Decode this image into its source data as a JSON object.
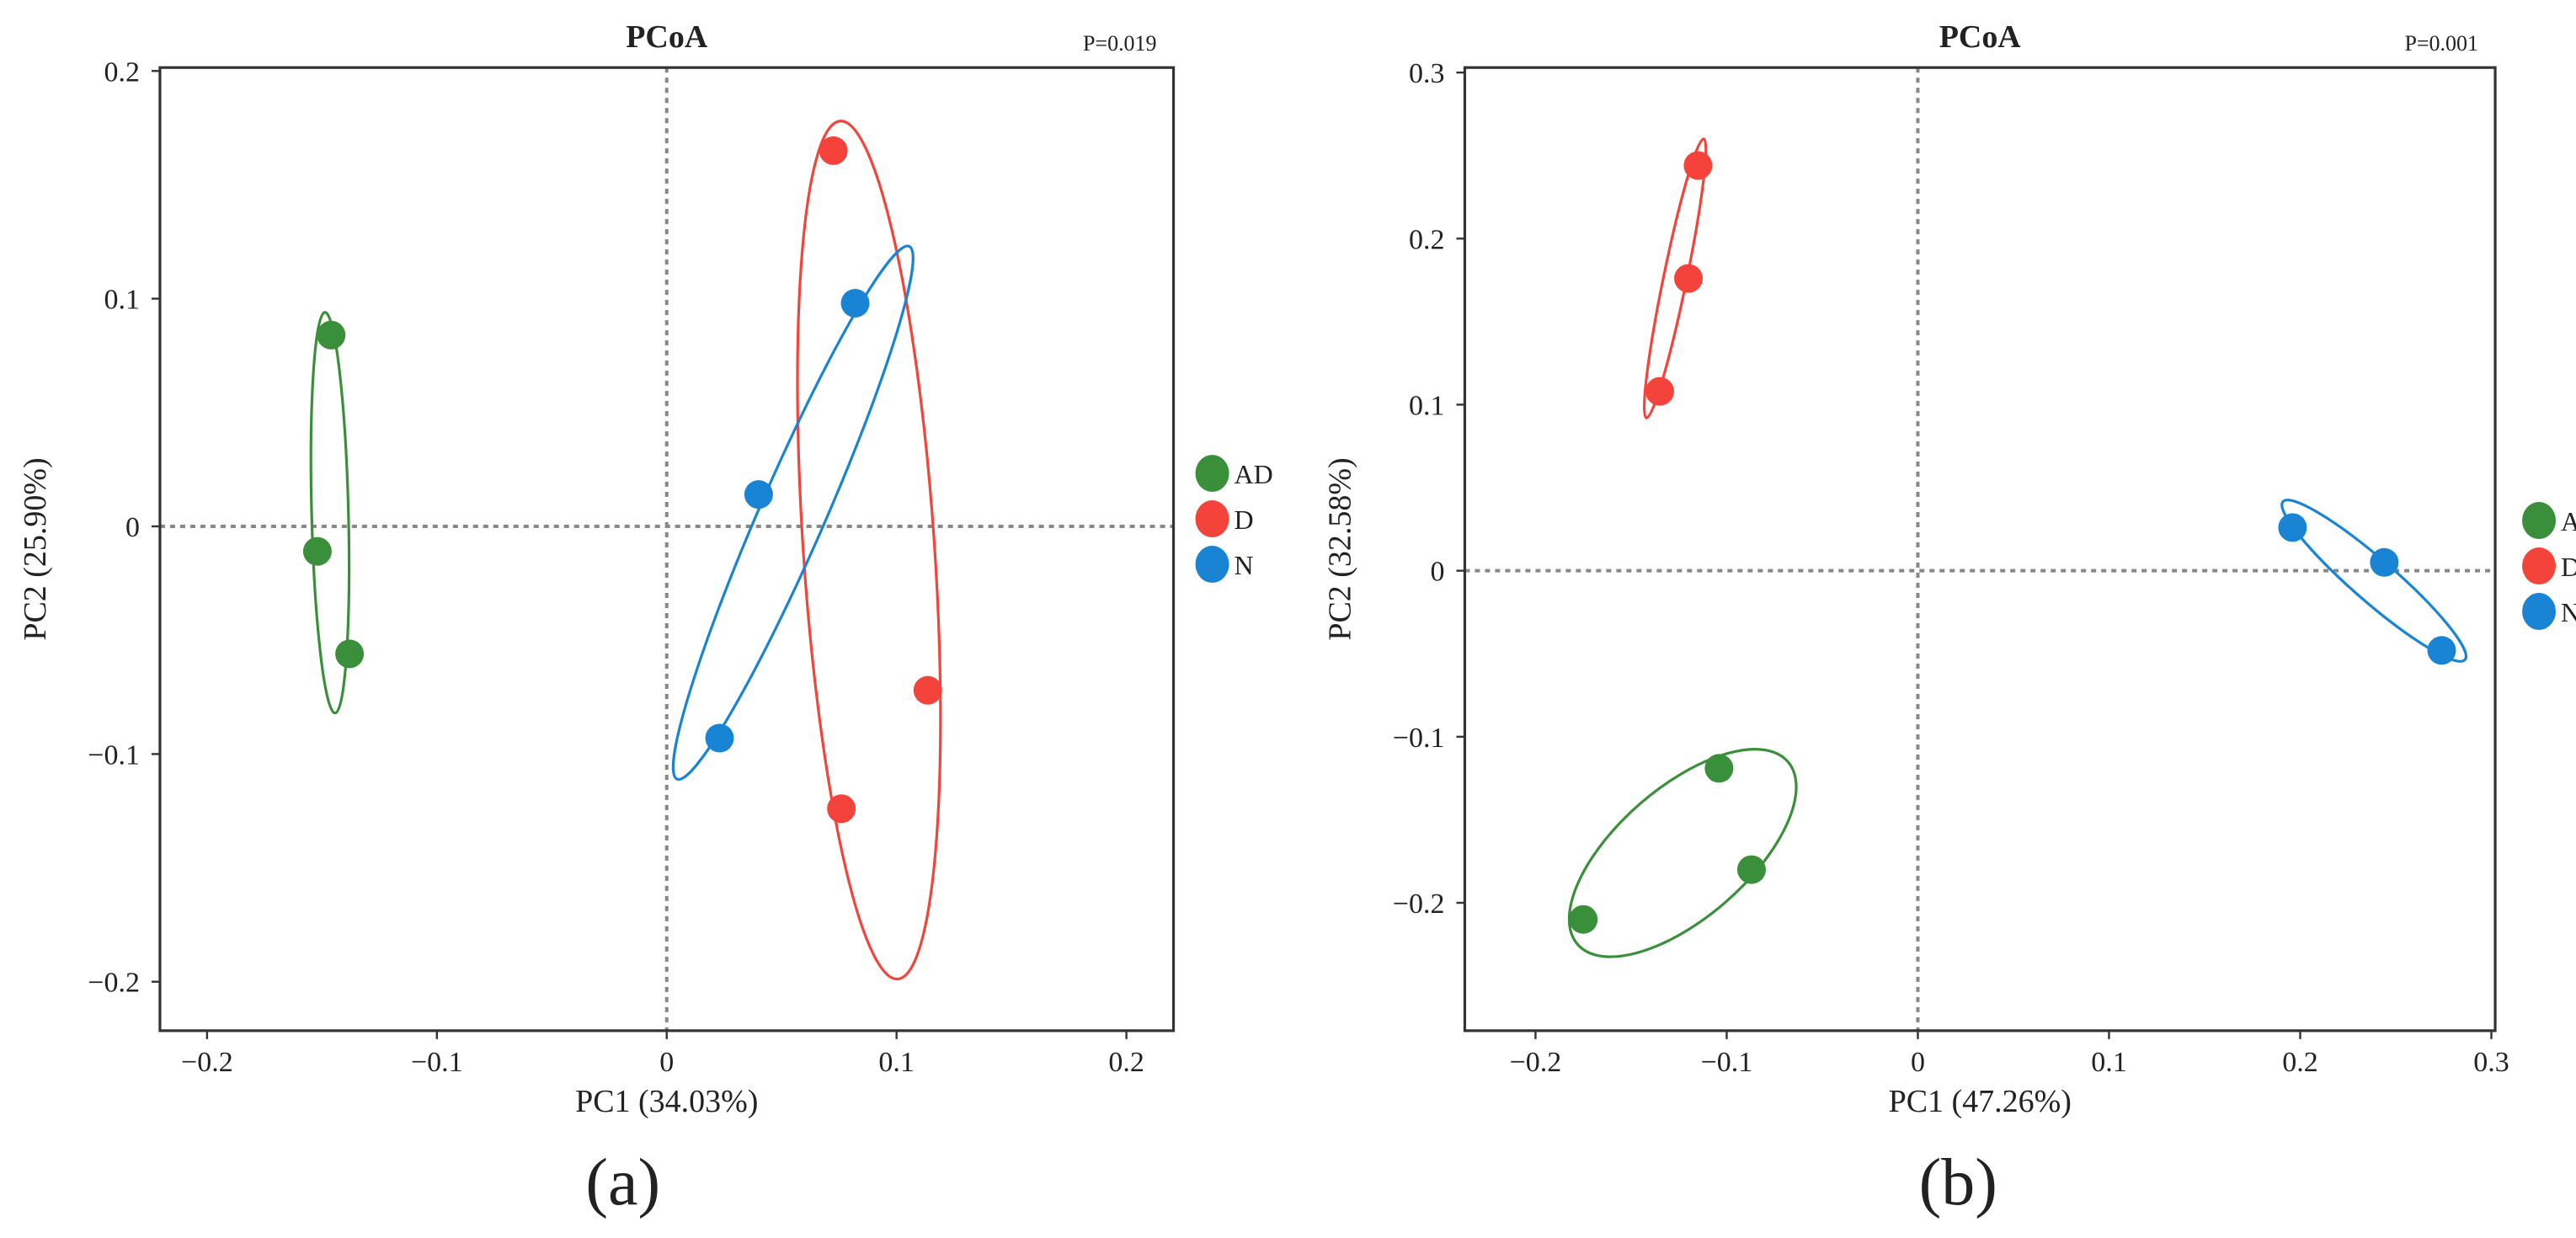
{
  "colors": {
    "AD": "#3a8f3a",
    "D": "#f4433a",
    "N": "#1a84d4",
    "axis": "#333333",
    "guide": "#888888"
  },
  "chart_data": [
    {
      "type": "scatter",
      "panel_label": "(a)",
      "title": "PCoA",
      "p_value": "P=0.019",
      "xlabel": "PC1 (34.03%)",
      "ylabel": "PC2 (25.90%)",
      "xlim": [
        -0.2205,
        0.2205
      ],
      "ylim": [
        -0.2215,
        0.2015
      ],
      "xticks": [
        {
          "v": -0.2,
          "label": "−0.2"
        },
        {
          "v": -0.1,
          "label": "−0.1"
        },
        {
          "v": 0,
          "label": "0"
        },
        {
          "v": 0.1,
          "label": "0.1"
        },
        {
          "v": 0.2,
          "label": "0.2"
        }
      ],
      "yticks": [
        {
          "v": 0.2,
          "label": "0.2"
        },
        {
          "v": 0.1,
          "label": "0.1"
        },
        {
          "v": 0,
          "label": "0"
        },
        {
          "v": -0.1,
          "label": "−0.1"
        },
        {
          "v": -0.2,
          "label": "−0.2"
        }
      ],
      "legend": [
        "AD",
        "D",
        "N"
      ],
      "legend_position": "right",
      "series": [
        {
          "name": "AD",
          "points": [
            [
              -0.146,
              0.084
            ],
            [
              -0.152,
              -0.011
            ],
            [
              -0.138,
              -0.056
            ]
          ],
          "ellipse": {
            "center": [
              -0.1465,
              0.006
            ],
            "major_end": [
              -0.1487,
              0.094
            ],
            "minor_end": [
              -0.1385,
              0.006
            ]
          }
        },
        {
          "name": "D",
          "points": [
            [
              0.0725,
              0.165
            ],
            [
              0.1136,
              -0.072
            ],
            [
              0.076,
              -0.124
            ]
          ],
          "ellipse": {
            "center": [
              0.088,
              -0.0104
            ],
            "major_end": [
              0.0755,
              0.178
            ],
            "minor_end": [
              0.1165,
              -0.0085
            ]
          }
        },
        {
          "name": "N",
          "points": [
            [
              0.082,
              0.098
            ],
            [
              0.04,
              0.014
            ],
            [
              0.023,
              -0.093
            ]
          ],
          "ellipse": {
            "center": [
              0.055,
              0.006
            ],
            "major_end": [
              0.1055,
              0.123
            ],
            "minor_end": [
              0.068,
              0.0
            ]
          }
        }
      ]
    },
    {
      "type": "scatter",
      "panel_label": "(b)",
      "title": "PCoA",
      "p_value": "P=0.001",
      "xlabel": "PC1 (47.26%)",
      "ylabel": "PC2 (32.58%)",
      "xlim": [
        -0.237,
        0.302
      ],
      "ylim": [
        -0.277,
        0.303
      ],
      "xticks": [
        {
          "v": -0.2,
          "label": "−0.2"
        },
        {
          "v": -0.1,
          "label": "−0.1"
        },
        {
          "v": 0,
          "label": "0"
        },
        {
          "v": 0.1,
          "label": "0.1"
        },
        {
          "v": 0.2,
          "label": "0.2"
        },
        {
          "v": 0.3,
          "label": "0.3"
        }
      ],
      "yticks": [
        {
          "v": 0.3,
          "label": "0.3"
        },
        {
          "v": 0.2,
          "label": "0.2"
        },
        {
          "v": 0.1,
          "label": "0.1"
        },
        {
          "v": 0,
          "label": "0"
        },
        {
          "v": -0.1,
          "label": "−0.1"
        },
        {
          "v": -0.2,
          "label": "−0.2"
        }
      ],
      "legend": [
        "AD",
        "D",
        "N"
      ],
      "legend_position": "right",
      "series": [
        {
          "name": "AD",
          "points": [
            [
              -0.104,
              -0.119
            ],
            [
              -0.087,
              -0.18
            ],
            [
              -0.175,
              -0.21
            ]
          ],
          "ellipse": {
            "center": [
              -0.123,
              -0.17
            ],
            "major_end": [
              -0.068,
              -0.115
            ],
            "minor_end": [
              -0.101,
              -0.2
            ]
          }
        },
        {
          "name": "D",
          "points": [
            [
              -0.115,
              0.244
            ],
            [
              -0.12,
              0.176
            ],
            [
              -0.135,
              0.108
            ]
          ],
          "ellipse": {
            "center": [
              -0.127,
              0.176
            ],
            "major_end": [
              -0.112,
              0.26
            ],
            "minor_end": [
              -0.121,
              0.175
            ]
          }
        },
        {
          "name": "N",
          "points": [
            [
              0.196,
              0.026
            ],
            [
              0.244,
              0.005
            ],
            [
              0.274,
              -0.048
            ]
          ],
          "ellipse": {
            "center": [
              0.2386,
              -0.006
            ],
            "major_end": [
              0.191,
              0.0416
            ],
            "minor_end": [
              0.2455,
              0.004
            ]
          }
        }
      ]
    }
  ]
}
